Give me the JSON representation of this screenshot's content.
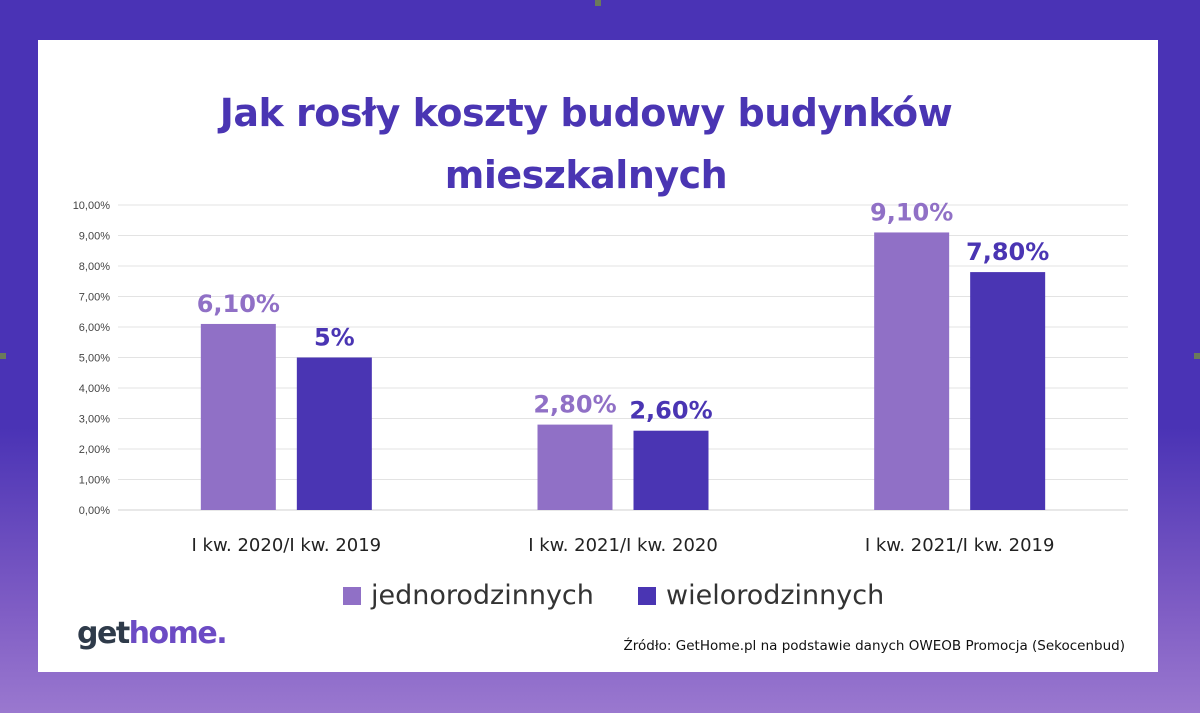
{
  "title_line1": "Jak rosły koszty budowy budynków",
  "title_line2": "mieszkalnych",
  "logo": {
    "part1": "get",
    "part2": "home."
  },
  "source": "Źródło: GetHome.pl na podstawie danych OWEOB Promocja (Sekocenbud)",
  "colors": {
    "frame": "#4a33b5",
    "series1": "#9070c6",
    "series2": "#4a35b3",
    "title": "#4a35b3"
  },
  "chart_data": {
    "type": "bar",
    "categories": [
      "I kw. 2020/I kw. 2019",
      "I kw. 2021/I kw. 2020",
      "I kw. 2021/I kw. 2019"
    ],
    "series": [
      {
        "name": "jednorodzinnych",
        "values": [
          6.1,
          2.8,
          9.1
        ],
        "labels": [
          "6,10%",
          "2,80%",
          "9,10%"
        ],
        "color": "#9070c6"
      },
      {
        "name": "wielorodzinnych",
        "values": [
          5.0,
          2.6,
          7.8
        ],
        "labels": [
          "5%",
          "2,60%",
          "7,80%"
        ],
        "color": "#4a35b3"
      }
    ],
    "ylim": [
      0,
      10
    ],
    "yticks": [
      "0,00%",
      "1,00%",
      "2,00%",
      "3,00%",
      "4,00%",
      "5,00%",
      "6,00%",
      "7,00%",
      "8,00%",
      "9,00%",
      "10,00%"
    ],
    "grid": true,
    "legend": "bottom"
  }
}
